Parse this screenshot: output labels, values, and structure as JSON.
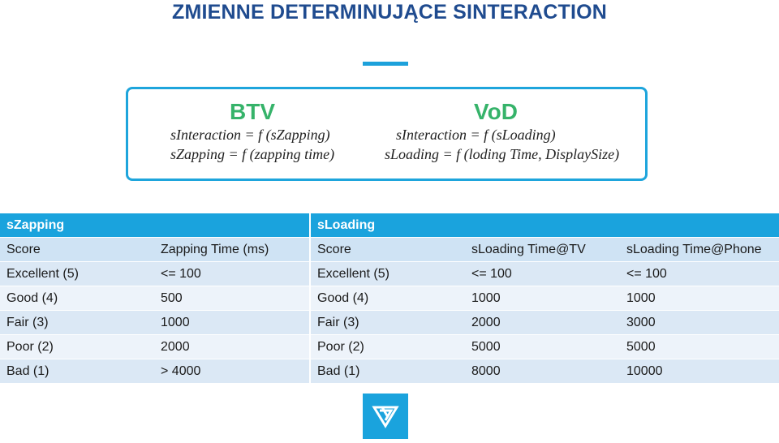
{
  "title": "ZMIENNE DETERMINUJĄCE SINTERACTION",
  "formulas": {
    "btv": {
      "heading": "BTV",
      "lines": [
        "sInteraction = f (sZapping)",
        "sZapping = f (zapping time)"
      ]
    },
    "vod": {
      "heading": "VoD",
      "lines": [
        "sInteraction = f (sLoading)",
        "sLoading = f (loding Time, DisplaySize)"
      ]
    }
  },
  "szapping_table": {
    "title": "sZapping",
    "headers": [
      "Score",
      "Zapping Time (ms)"
    ],
    "rows": [
      [
        "Excellent (5)",
        "<= 100"
      ],
      [
        "Good (4)",
        "500"
      ],
      [
        "Fair (3)",
        "1000"
      ],
      [
        "Poor (2)",
        "2000"
      ],
      [
        "Bad (1)",
        "> 4000"
      ]
    ]
  },
  "sloading_table": {
    "title": "sLoading",
    "headers": [
      "Score",
      "sLoading Time@TV",
      "sLoading Time@Phone"
    ],
    "rows": [
      [
        "Excellent (5)",
        "<= 100",
        "<= 100"
      ],
      [
        "Good (4)",
        "1000",
        "1000"
      ],
      [
        "Fair (3)",
        "2000",
        "3000"
      ],
      [
        "Poor (2)",
        "5000",
        "5000"
      ],
      [
        "Bad (1)",
        "8000",
        "10000"
      ]
    ]
  },
  "colors": {
    "title": "#1f4b8f",
    "accent": "#1da1db",
    "formula_heading": "#36b36a",
    "table_header": "#1aa3dd"
  },
  "icons": {
    "logo": "v-chevron-logo-icon"
  }
}
